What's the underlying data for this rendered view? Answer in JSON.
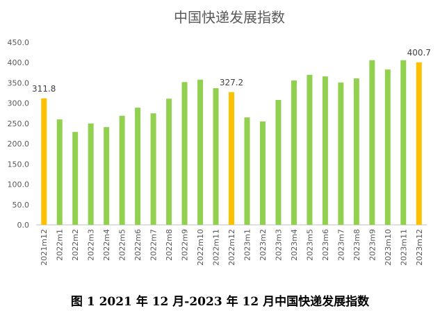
{
  "chart_data": {
    "type": "bar",
    "title": "中国快递发展指数",
    "caption": "图 1 2021 年 12 月-2023 年 12 月中国快递发展指数",
    "categories": [
      "2021m12",
      "2022m1",
      "2022m2",
      "2022m3",
      "2022m4",
      "2022m5",
      "2022m6",
      "2022m7",
      "2022m8",
      "2022m9",
      "2022m10",
      "2022m11",
      "2022m12",
      "2023m1",
      "2023m2",
      "2023m3",
      "2023m4",
      "2023m5",
      "2023m6",
      "2023m7",
      "2023m8",
      "2023m9",
      "2023m10",
      "2023m11",
      "2023m12"
    ],
    "values": [
      311.8,
      260,
      229,
      250,
      241,
      269,
      289,
      275,
      311,
      352,
      358,
      337,
      327.2,
      265,
      255,
      308,
      356,
      370,
      366,
      351,
      361,
      406,
      383,
      406,
      400.7
    ],
    "highlight": [
      "2021m12",
      "2022m12",
      "2023m12"
    ],
    "data_labels": {
      "2021m12": "311.8",
      "2022m12": "327.2",
      "2023m12": "400.7"
    },
    "ylim": [
      0,
      450
    ],
    "yticks": [
      "0.0",
      "50.0",
      "100.0",
      "150.0",
      "200.0",
      "250.0",
      "300.0",
      "350.0",
      "400.0",
      "450.0"
    ],
    "grid": false,
    "colors": {
      "bar": "#92d050",
      "highlight": "#ffc000",
      "title": "#595959"
    }
  }
}
